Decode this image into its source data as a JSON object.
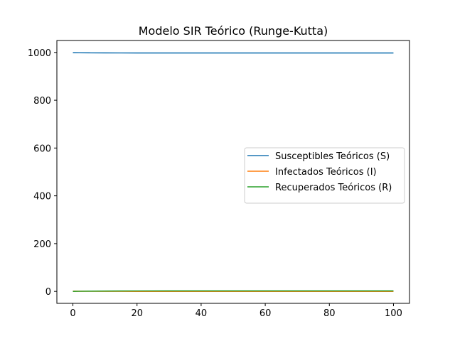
{
  "chart_data": {
    "type": "line",
    "title": "Modelo SIR Teórico (Runge-Kutta)",
    "xlabel": "",
    "ylabel": "",
    "xlim": [
      -5,
      105
    ],
    "ylim": [
      -50,
      1050
    ],
    "xticks": [
      0,
      20,
      40,
      60,
      80,
      100
    ],
    "yticks": [
      0,
      200,
      400,
      600,
      800,
      1000
    ],
    "grid": false,
    "legend_position": "center-right",
    "x": [
      0,
      2,
      5,
      10,
      15,
      20,
      30,
      40,
      50,
      60,
      70,
      80,
      90,
      100
    ],
    "series": [
      {
        "name": "Susceptibles Teóricos (S)",
        "color": "#1f77b4",
        "values": [
          999,
          998.7,
          998.4,
          998.1,
          998,
          997.9,
          997.8,
          997.8,
          997.8,
          997.8,
          997.8,
          997.8,
          997.8,
          997.8
        ]
      },
      {
        "name": "Infectados Teóricos (I)",
        "color": "#ff7f0e",
        "values": [
          1,
          0.8,
          0.6,
          0.4,
          0.2,
          0.1,
          0.05,
          0.02,
          0.01,
          0,
          0,
          0,
          0,
          0
        ]
      },
      {
        "name": "Recuperados Teóricos (R)",
        "color": "#2ca02c",
        "values": [
          0,
          0.5,
          1,
          1.5,
          1.8,
          2,
          2.15,
          2.18,
          2.19,
          2.2,
          2.2,
          2.2,
          2.2,
          2.2
        ]
      }
    ]
  }
}
